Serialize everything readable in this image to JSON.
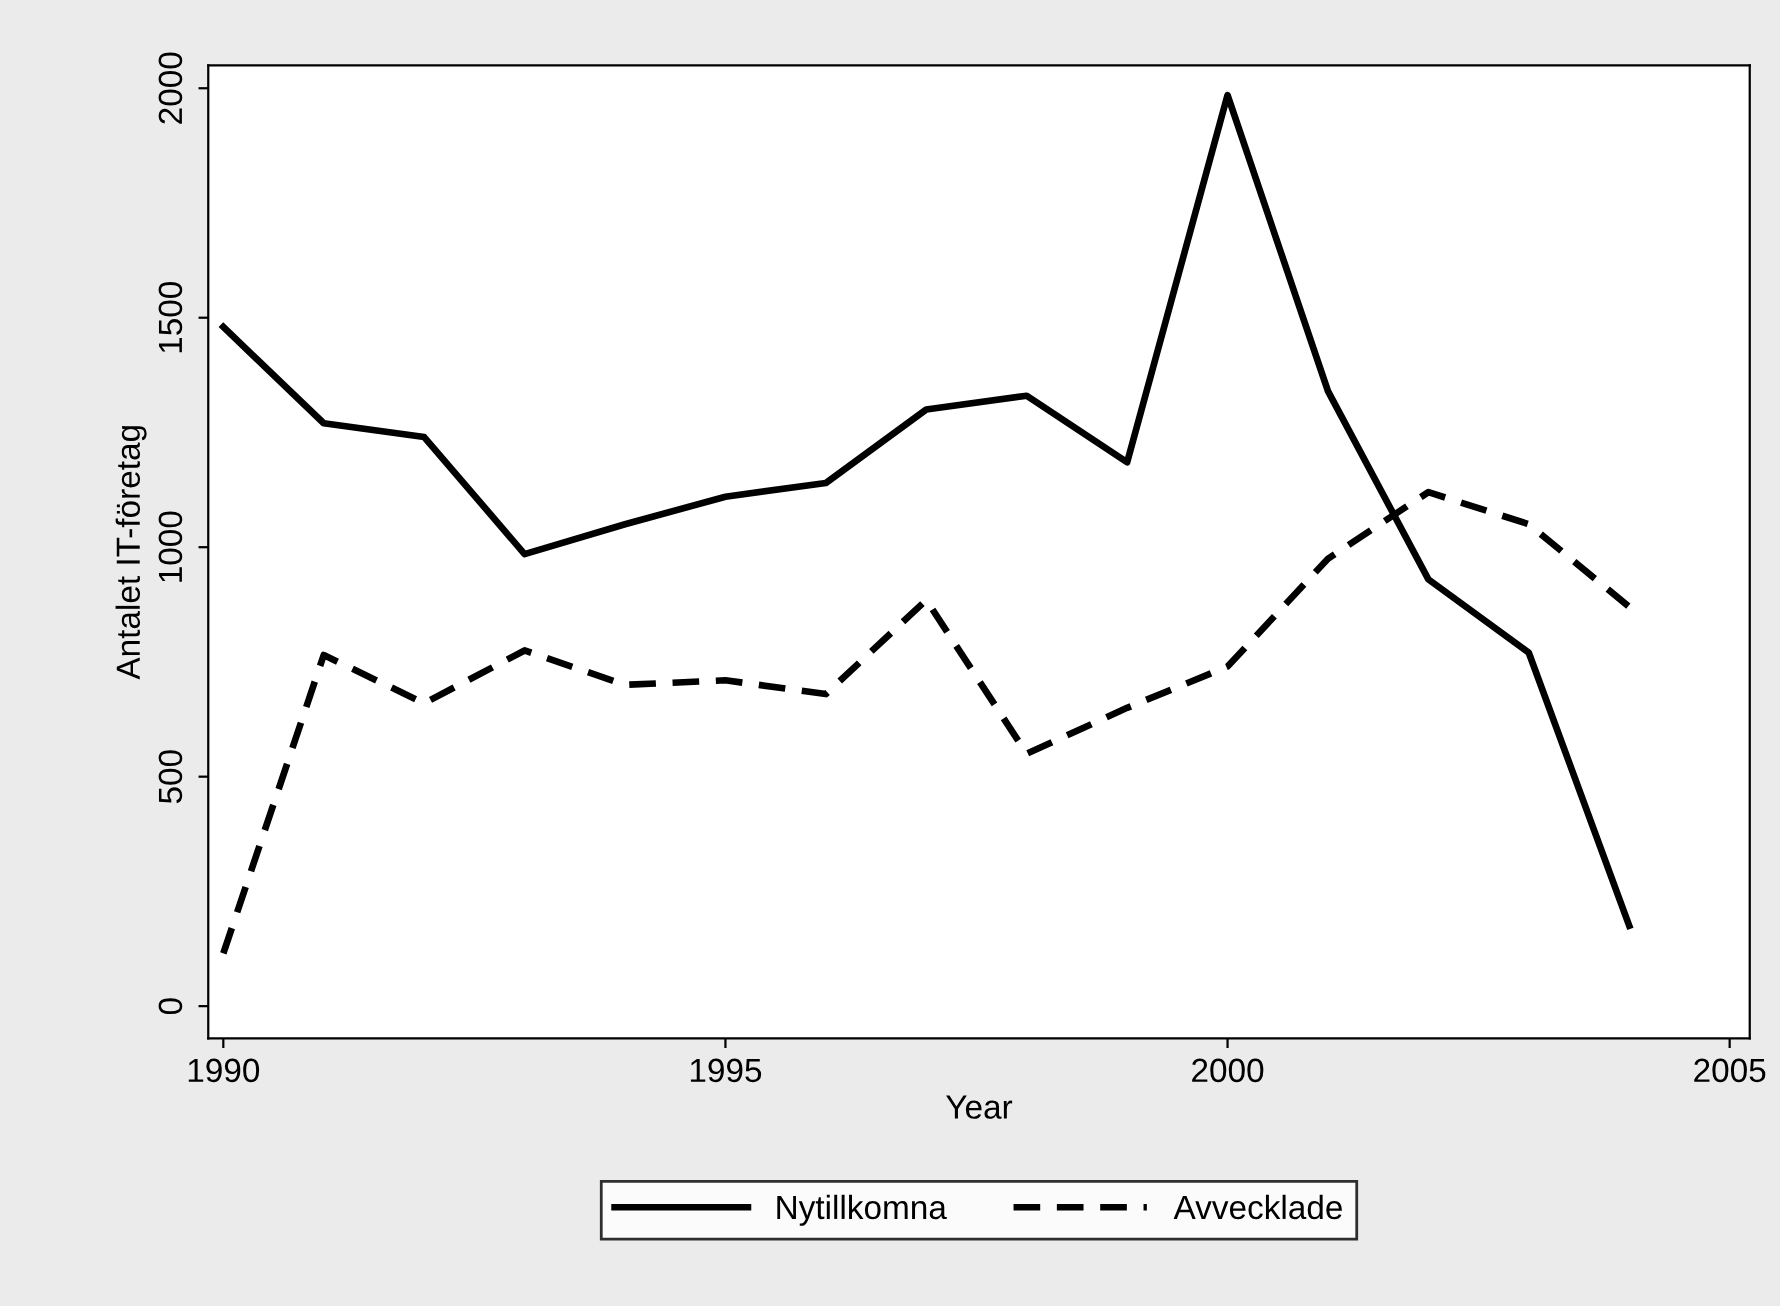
{
  "chart_data": {
    "type": "line",
    "xlabel": "Year",
    "ylabel": "Antalet IT-företag",
    "x": [
      1990,
      1991,
      1992,
      1993,
      1994,
      1995,
      1996,
      1997,
      1998,
      1999,
      2000,
      2001,
      2002,
      2003,
      2004
    ],
    "series": [
      {
        "name": "Nytillkomna",
        "color": "#000000",
        "line_style": "solid",
        "values": [
          1480,
          1270,
          1240,
          985,
          1050,
          1110,
          1140,
          1300,
          1330,
          1185,
          1985,
          1340,
          930,
          770,
          175
        ]
      },
      {
        "name": "Avvecklade",
        "color": "#000000",
        "line_style": "dashed",
        "values": [
          115,
          765,
          660,
          775,
          700,
          710,
          680,
          885,
          550,
          650,
          740,
          975,
          1120,
          1050,
          870
        ]
      }
    ],
    "xlim": [
      1989.85,
      2005.2
    ],
    "ylim": [
      -70,
      2050
    ],
    "xticks": [
      1990,
      1995,
      2000,
      2005
    ],
    "yticks": [
      0,
      500,
      1000,
      1500,
      2000
    ],
    "grid": false,
    "legend": "bottom",
    "marker": "none"
  }
}
